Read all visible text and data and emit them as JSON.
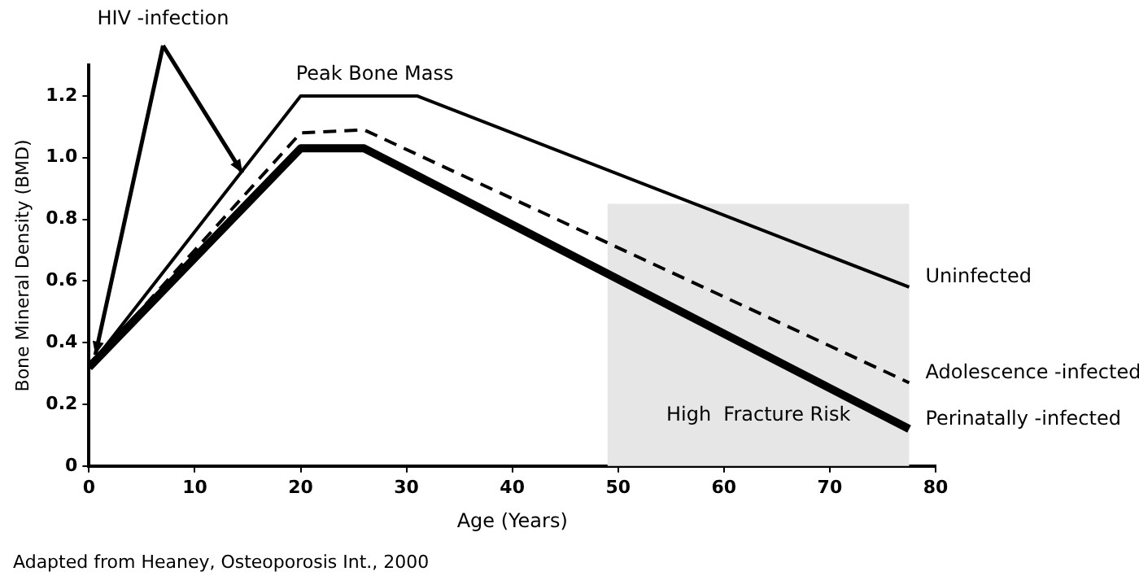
{
  "chart_data": {
    "type": "line",
    "xlabel": "Age (Years)",
    "ylabel": "Bone Mineral Density (BMD)",
    "xlim": [
      0,
      80
    ],
    "xticks": [
      0,
      10,
      20,
      30,
      40,
      50,
      60,
      70,
      80
    ],
    "ylim": [
      0,
      1.3
    ],
    "yticks": [
      0,
      0.2,
      0.4,
      0.6,
      0.8,
      {
        "value": 1,
        "label": "1.0"
      },
      1.2
    ],
    "grid": false,
    "legend": false,
    "marker": "none",
    "series": [
      {
        "name": "Uninfected",
        "color": "#000000",
        "line_style": "solid",
        "x": [
          0,
          20,
          31,
          77.5
        ],
        "values": [
          0.32,
          1.2,
          1.2,
          0.58
        ]
      },
      {
        "name": "Adolescence -infected",
        "color": "#000000",
        "line_style": "dashed",
        "x": [
          0,
          20,
          26,
          77.5
        ],
        "values": [
          0.32,
          1.08,
          1.09,
          0.27
        ]
      },
      {
        "name": "Perinatally -infected",
        "color": "#000000",
        "line_style": "solid",
        "x": [
          0,
          20,
          26,
          77.5
        ],
        "values": [
          0.32,
          1.03,
          1.03,
          0.12
        ]
      }
    ],
    "bands": [
      {
        "axis": "x",
        "from": 49,
        "to": 77.5,
        "label": "High  Fracture Risk",
        "color": "#e6e6e6"
      }
    ],
    "annotations": [
      {
        "text": "HIV -infection",
        "x": 14.5,
        "y": 0.95
      },
      "Peak Bone Mass",
      "Adapted from Heaney, Osteoporosis Int., 2000"
    ]
  }
}
